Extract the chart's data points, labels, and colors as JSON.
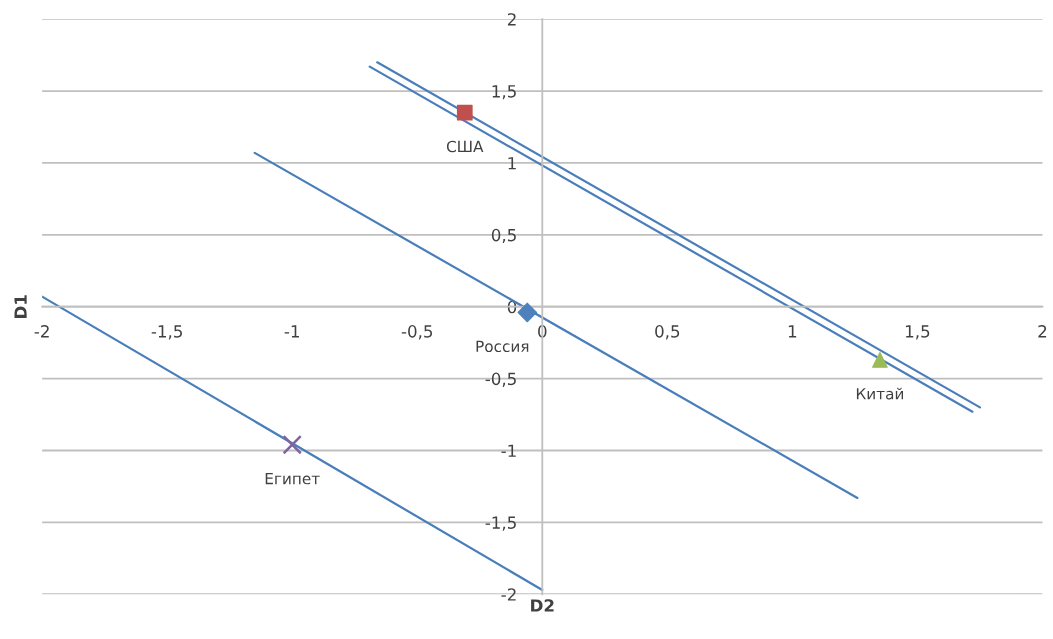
{
  "chart_data": {
    "type": "scatter",
    "xlabel": "D2",
    "ylabel": "D1",
    "xlim": [
      -2,
      2
    ],
    "ylim": [
      -2,
      2
    ],
    "xticks": [
      {
        "value": -2,
        "label": "-2"
      },
      {
        "value": -1.5,
        "label": "-1,5"
      },
      {
        "value": -1,
        "label": "-1"
      },
      {
        "value": -0.5,
        "label": "-0,5"
      },
      {
        "value": 0,
        "label": "0"
      },
      {
        "value": 0.5,
        "label": "0,5"
      },
      {
        "value": 1,
        "label": "1"
      },
      {
        "value": 1.5,
        "label": "1,5"
      },
      {
        "value": 2,
        "label": "2"
      }
    ],
    "yticks": [
      {
        "value": -2,
        "label": "-2"
      },
      {
        "value": -1.5,
        "label": "-1,5"
      },
      {
        "value": -1,
        "label": "-1"
      },
      {
        "value": -0.5,
        "label": "-0,5"
      },
      {
        "value": 0,
        "label": "0"
      },
      {
        "value": 0.5,
        "label": "0,5"
      },
      {
        "value": 1,
        "label": "1"
      },
      {
        "value": 1.5,
        "label": "1,5"
      },
      {
        "value": 2,
        "label": "2"
      }
    ],
    "grid": "y",
    "series": [
      {
        "type": "line",
        "color": "#4a7ebb",
        "x": [
          -2.0,
          0.0
        ],
        "values": [
          0.07,
          -1.97
        ]
      },
      {
        "type": "line",
        "color": "#4a7ebb",
        "x": [
          -1.15,
          1.26
        ],
        "values": [
          1.07,
          -1.33
        ]
      },
      {
        "type": "line",
        "color": "#4a7ebb",
        "x": [
          -0.66,
          1.75
        ],
        "values": [
          1.7,
          -0.7
        ]
      },
      {
        "type": "line",
        "color": "#4a7ebb",
        "x": [
          -0.69,
          1.72
        ],
        "values": [
          1.67,
          -0.73
        ]
      },
      {
        "name": "США",
        "color": "#c0504d",
        "marker": "square",
        "x": [
          -0.31
        ],
        "values": [
          1.35
        ]
      },
      {
        "name": "Россия",
        "color": "#4f81bd",
        "marker": "diamond",
        "x": [
          -0.06
        ],
        "values": [
          -0.04
        ]
      },
      {
        "name": "Китай",
        "color": "#9bbb59",
        "marker": "triangle",
        "x": [
          1.35
        ],
        "values": [
          -0.37
        ]
      },
      {
        "name": "Египет",
        "color": "#8064a2",
        "marker": "cross",
        "x": [
          -1.0
        ],
        "values": [
          -0.96
        ]
      }
    ]
  }
}
